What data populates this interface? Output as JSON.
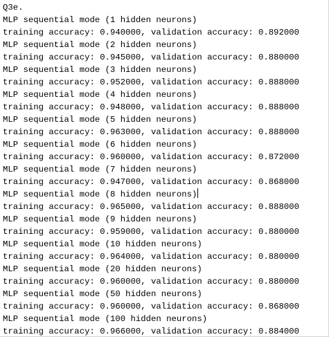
{
  "console": {
    "header": "Q3e.",
    "lines": [
      "MLP sequential mode (1 hidden neurons)",
      "training accuracy: 0.940000, validation accuracy: 0.892000",
      "MLP sequential mode (2 hidden neurons)",
      "training accuracy: 0.945000, validation accuracy: 0.880000",
      "MLP sequential mode (3 hidden neurons)",
      "training accuracy: 0.952000, validation accuracy: 0.888000",
      "MLP sequential mode (4 hidden neurons)",
      "training accuracy: 0.948000, validation accuracy: 0.888000",
      "MLP sequential mode (5 hidden neurons)",
      "training accuracy: 0.963000, validation accuracy: 0.888000",
      "MLP sequential mode (6 hidden neurons)",
      "training accuracy: 0.960000, validation accuracy: 0.872000",
      "MLP sequential mode (7 hidden neurons)",
      "training accuracy: 0.947000, validation accuracy: 0.868000",
      "MLP sequential mode (8 hidden neurons)",
      "training accuracy: 0.965000, validation accuracy: 0.888000",
      "MLP sequential mode (9 hidden neurons)",
      "training accuracy: 0.959000, validation accuracy: 0.880000",
      "MLP sequential mode (10 hidden neurons)",
      "training accuracy: 0.964000, validation accuracy: 0.880000",
      "MLP sequential mode (20 hidden neurons)",
      "training accuracy: 0.960000, validation accuracy: 0.880000",
      "MLP sequential mode (50 hidden neurons)",
      "training accuracy: 0.960000, validation accuracy: 0.868000",
      "MLP sequential mode (100 hidden neurons)",
      "training accuracy: 0.966000, validation accuracy: 0.884000"
    ]
  }
}
